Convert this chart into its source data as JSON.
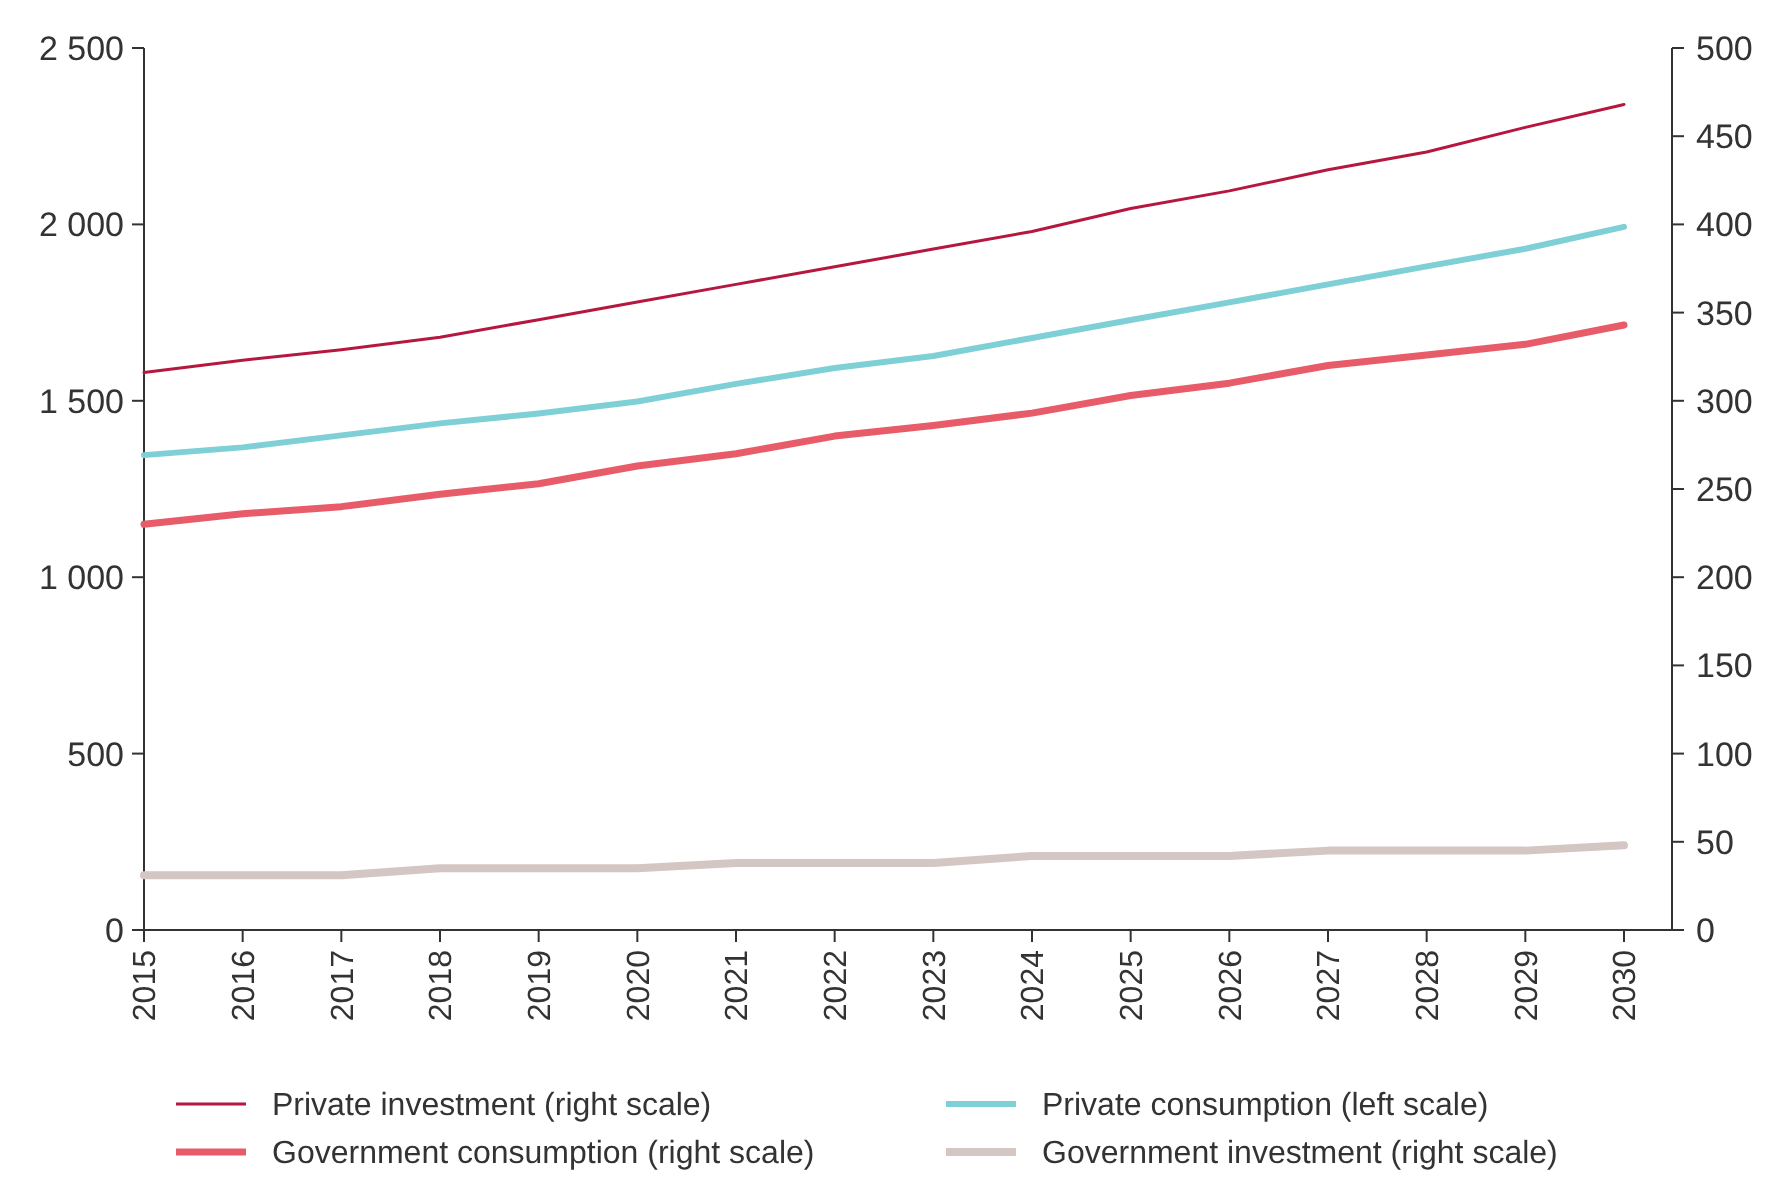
{
  "chart_data": {
    "type": "line",
    "categories": [
      "2015",
      "2016",
      "2017",
      "2018",
      "2019",
      "2020",
      "2021",
      "2022",
      "2023",
      "2024",
      "2025",
      "2026",
      "2027",
      "2028",
      "2029",
      "2030"
    ],
    "ylim": [
      0,
      2500
    ],
    "yticks": [
      0,
      500,
      {
        "value": 1000,
        "label": "1 000"
      },
      {
        "value": 1500,
        "label": "1 500"
      },
      {
        "value": 2000,
        "label": "2 000"
      },
      {
        "value": 2500,
        "label": "2 500"
      }
    ],
    "y2lim": [
      0,
      500
    ],
    "y2ticks": [
      0,
      50,
      100,
      150,
      200,
      250,
      300,
      350,
      400,
      450,
      500
    ],
    "grid": false,
    "legend": "bottom",
    "marker": "none",
    "line_style": "solid",
    "series": [
      {
        "name": "Private investment (right scale)",
        "color": "#b5173f",
        "axis": "y2",
        "values": [
          316,
          323,
          329,
          336,
          346,
          356,
          366,
          376,
          386,
          396,
          409,
          419,
          431,
          441,
          455,
          468
        ]
      },
      {
        "name": "Private consumption (left scale)",
        "color": "#7fd0d6",
        "values": [
          1346,
          1368,
          1402,
          1436,
          1464,
          1498,
          1548,
          1593,
          1627,
          1678,
          1729,
          1779,
          1830,
          1881,
          1931,
          1993
        ]
      },
      {
        "name": "Government consumption (right scale)",
        "color": "#e85c6a",
        "axis": "y2",
        "values": [
          230,
          236,
          240,
          247,
          253,
          263,
          270,
          280,
          286,
          293,
          303,
          310,
          320,
          326,
          332,
          343
        ]
      },
      {
        "name": "Government investment (right scale)",
        "color": "#d4c6c3",
        "axis": "y2",
        "values": [
          31,
          31,
          31,
          35,
          35,
          35,
          38,
          38,
          38,
          42,
          42,
          42,
          45,
          45,
          45,
          48
        ]
      }
    ]
  }
}
